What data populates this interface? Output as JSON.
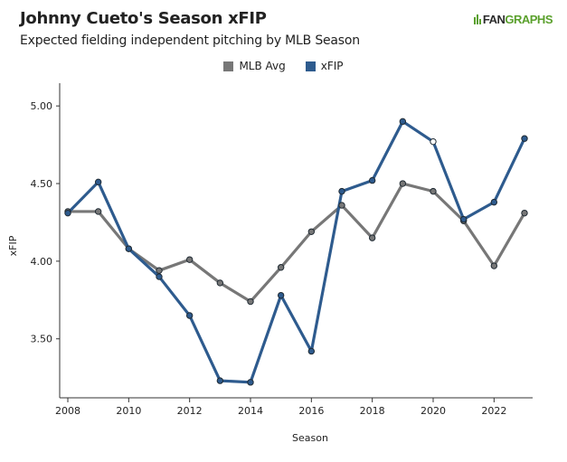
{
  "header": {
    "title": "Johnny Cueto's Season xFIP",
    "subtitle": "Expected fielding independent pitching by MLB Season",
    "brand_prefix": "FAN",
    "brand_suffix": "GRAPHS"
  },
  "colors": {
    "mlb_avg": "#777777",
    "xfip": "#2e5b8e",
    "brand_green": "#5aa02c",
    "axis": "#333333"
  },
  "chart_data": {
    "type": "line",
    "title": "Johnny Cueto's Season xFIP",
    "subtitle": "Expected fielding independent pitching by MLB Season",
    "xlabel": "Season",
    "ylabel": "xFIP",
    "xlim": [
      2008,
      2023
    ],
    "ylim": [
      3.12,
      5.1
    ],
    "x_ticks": [
      "2008",
      "2010",
      "2012",
      "2014",
      "2016",
      "2018",
      "2020",
      "2022"
    ],
    "y_ticks": [
      "3.50",
      "4.00",
      "4.50",
      "5.00"
    ],
    "grid": false,
    "legend_position": "top-center",
    "series": [
      {
        "name": "MLB Avg",
        "x": [
          2008,
          2009,
          2010,
          2011,
          2012,
          2013,
          2014,
          2015,
          2016,
          2017,
          2018,
          2019,
          2020,
          2021,
          2022,
          2023
        ],
        "values": [
          4.32,
          4.32,
          4.08,
          3.94,
          4.01,
          3.86,
          3.74,
          3.96,
          4.19,
          4.36,
          4.15,
          4.5,
          4.45,
          4.26,
          3.97,
          4.31
        ]
      },
      {
        "name": "xFIP",
        "x": [
          2008,
          2009,
          2010,
          2011,
          2012,
          2013,
          2014,
          2015,
          2016,
          2017,
          2018,
          2019,
          2020,
          2021,
          2022,
          2023
        ],
        "values": [
          4.31,
          4.51,
          4.08,
          3.9,
          3.65,
          3.23,
          3.22,
          3.78,
          3.42,
          4.45,
          4.52,
          4.9,
          4.77,
          4.27,
          4.38,
          4.79
        ],
        "hollow_points": [
          2020
        ]
      }
    ]
  }
}
